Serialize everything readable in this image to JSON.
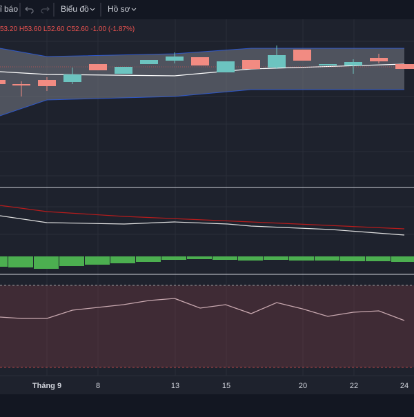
{
  "toolbar": {
    "items": [
      "ỉ báo",
      "Biểu đồ",
      "Hồ sơ"
    ]
  },
  "legend": {
    "open": "53.20",
    "high": "H53.60",
    "low": "L52.60",
    "close": "C52.60",
    "change": "-1.00",
    "change_pct": "(-1.87%)"
  },
  "x_axis": {
    "labels": [
      "Tháng 9",
      "8",
      "13",
      "15",
      "20",
      "22",
      "24"
    ]
  }
}
